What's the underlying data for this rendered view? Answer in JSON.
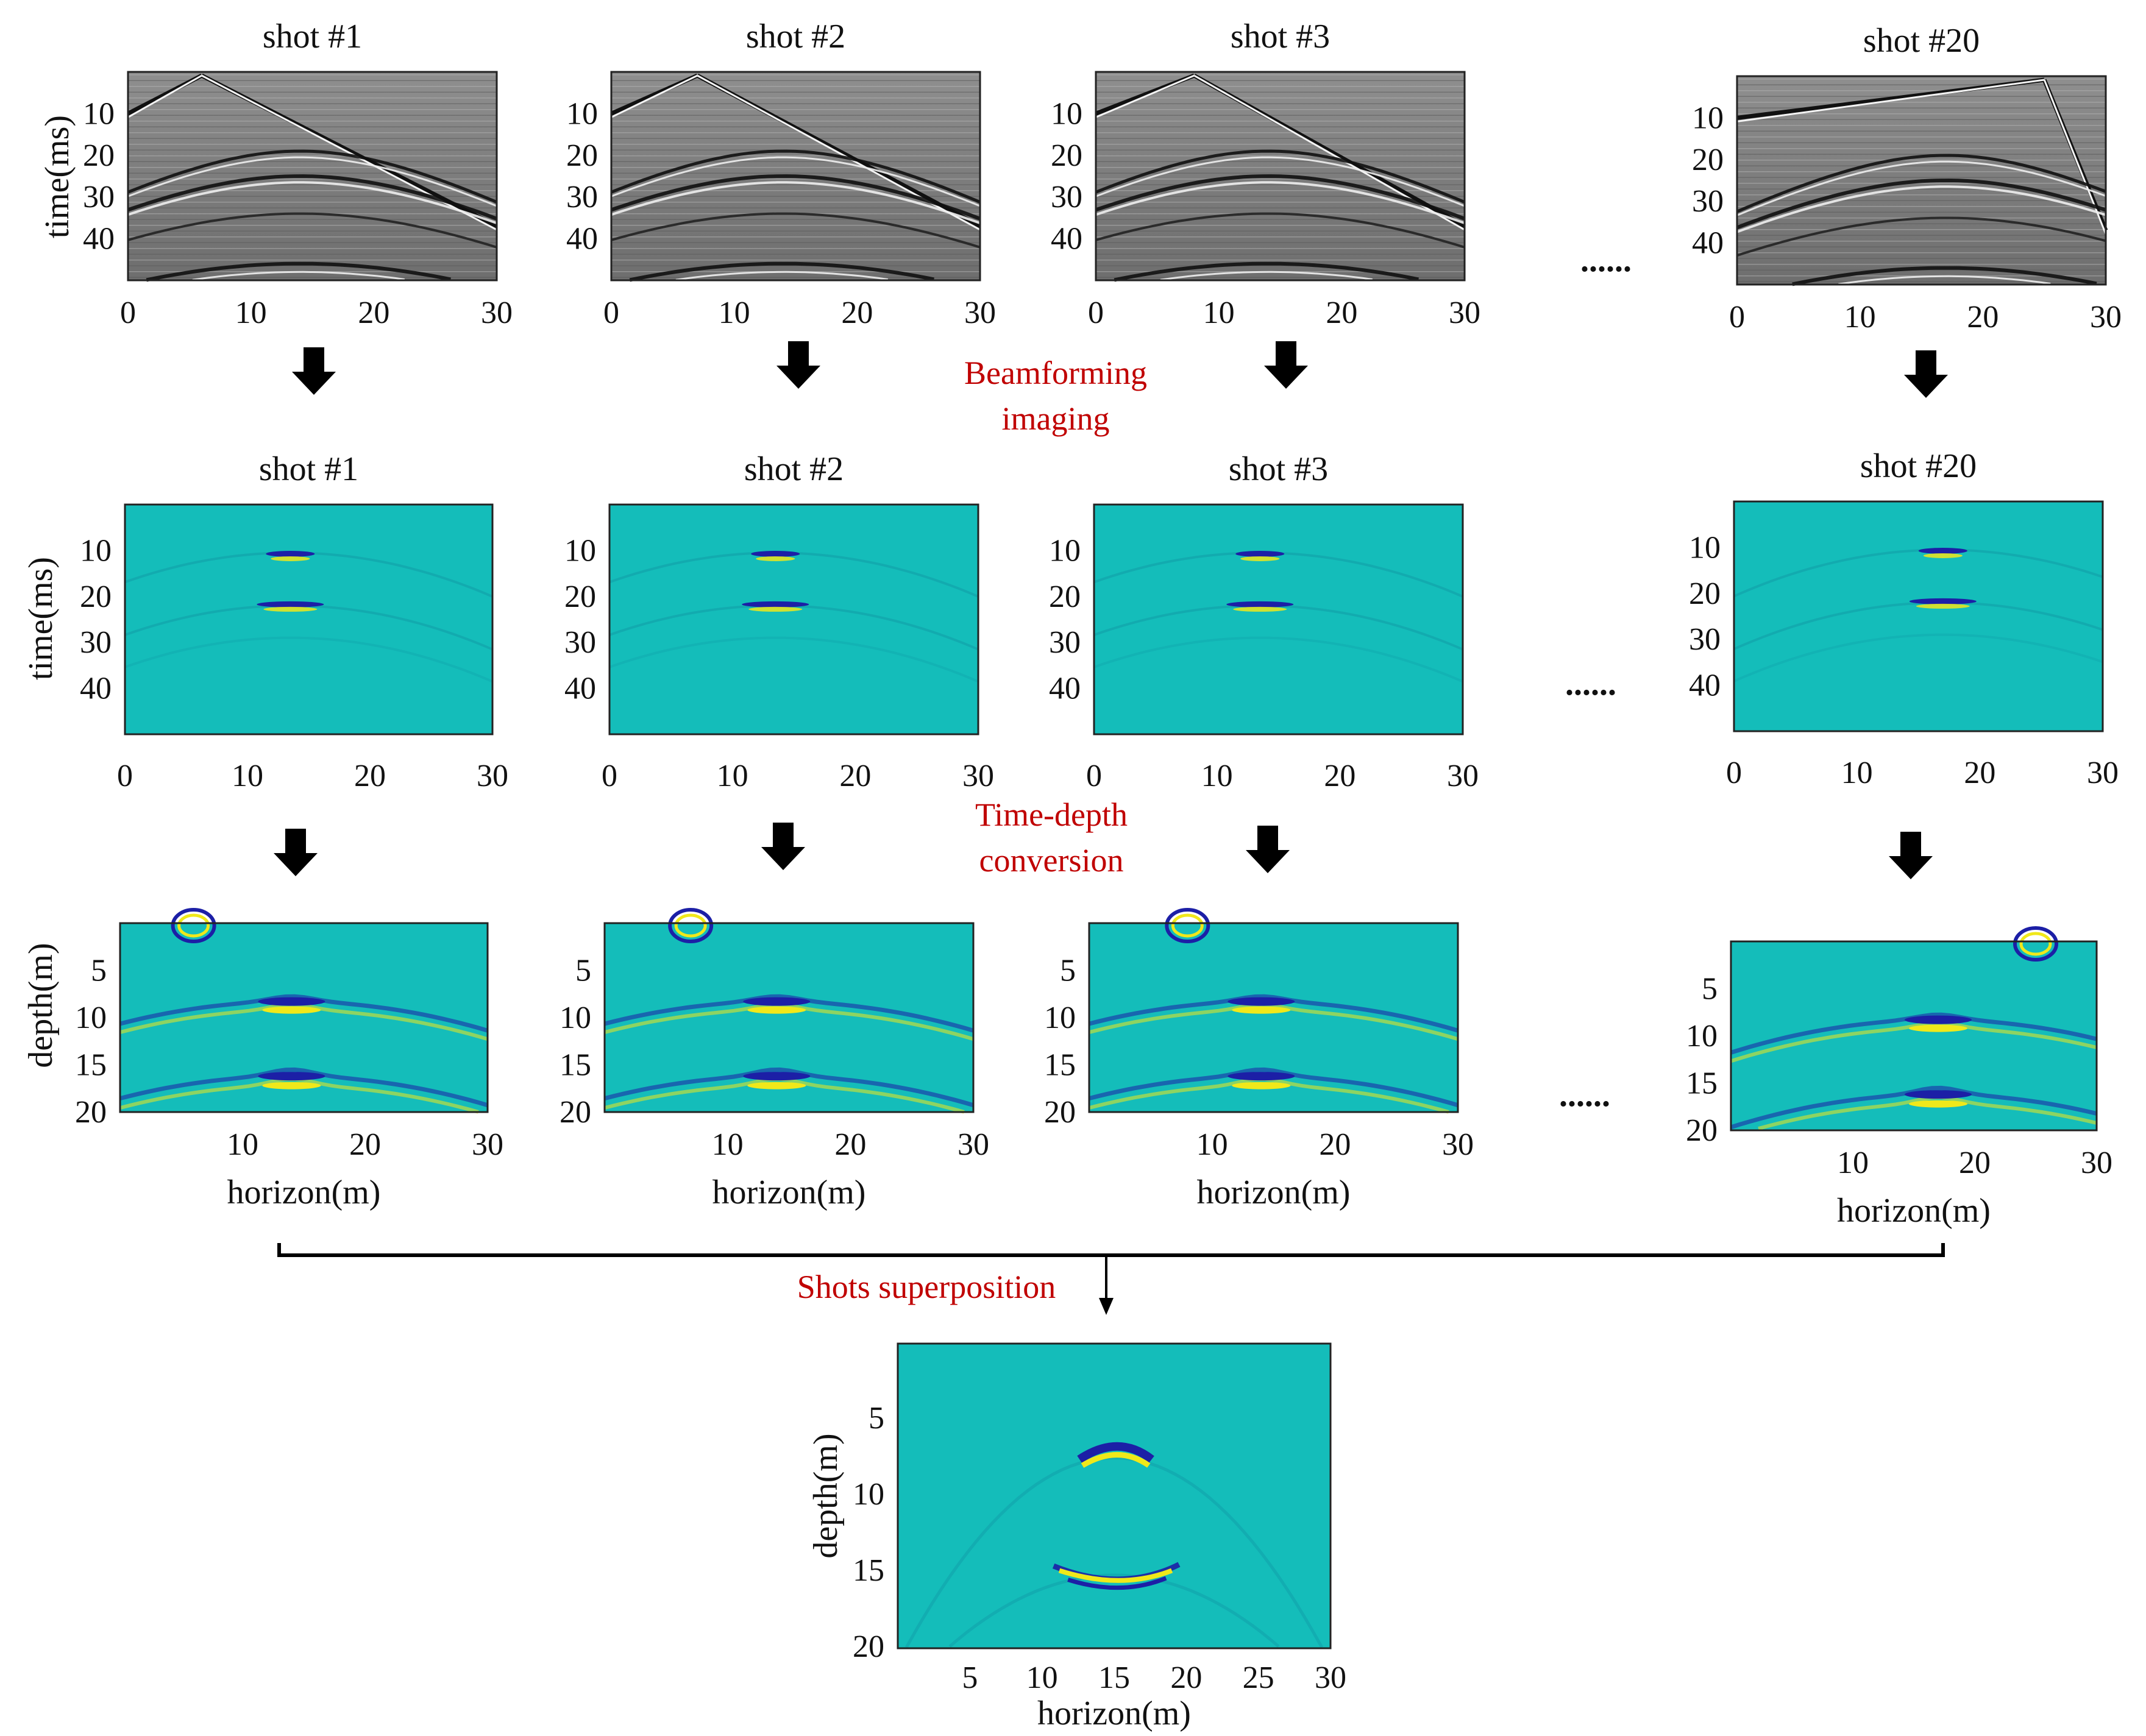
{
  "colors": {
    "seismic_background": "#8a8a8a",
    "image_background": "#14bdba",
    "step_label": "#c00000",
    "arrow": "#000000",
    "event_dark": "#1c1fa6",
    "event_bright": "#f0e81a"
  },
  "shots": [
    "shot #1",
    "shot #2",
    "shot #3",
    "shot #20"
  ],
  "ellipsis": "......",
  "rows": {
    "seismic": {
      "ylabel": "time(ms)",
      "yticks": [
        "10",
        "20",
        "30",
        "40"
      ],
      "xticks": [
        "0",
        "10",
        "20",
        "30"
      ]
    },
    "beamforming": {
      "ylabel": "time(ms)",
      "yticks": [
        "10",
        "20",
        "30",
        "40"
      ],
      "xticks": [
        "0",
        "10",
        "20",
        "30"
      ]
    },
    "depth": {
      "ylabel": "depth(m)",
      "yticks": [
        "5",
        "10",
        "15",
        "20"
      ],
      "xticks": [
        "10",
        "20",
        "30"
      ],
      "xlabel": "horizon(m)"
    }
  },
  "steps": {
    "beamforming": [
      "Beamforming",
      "imaging"
    ],
    "time_depth": [
      "Time-depth",
      "conversion"
    ],
    "superposition": "Shots superposition"
  },
  "final": {
    "ylabel": "depth(m)",
    "xlabel": "horizon(m)",
    "yticks": [
      "5",
      "10",
      "15",
      "20"
    ],
    "xticks": [
      "5",
      "10",
      "15",
      "20",
      "25",
      "30"
    ]
  }
}
